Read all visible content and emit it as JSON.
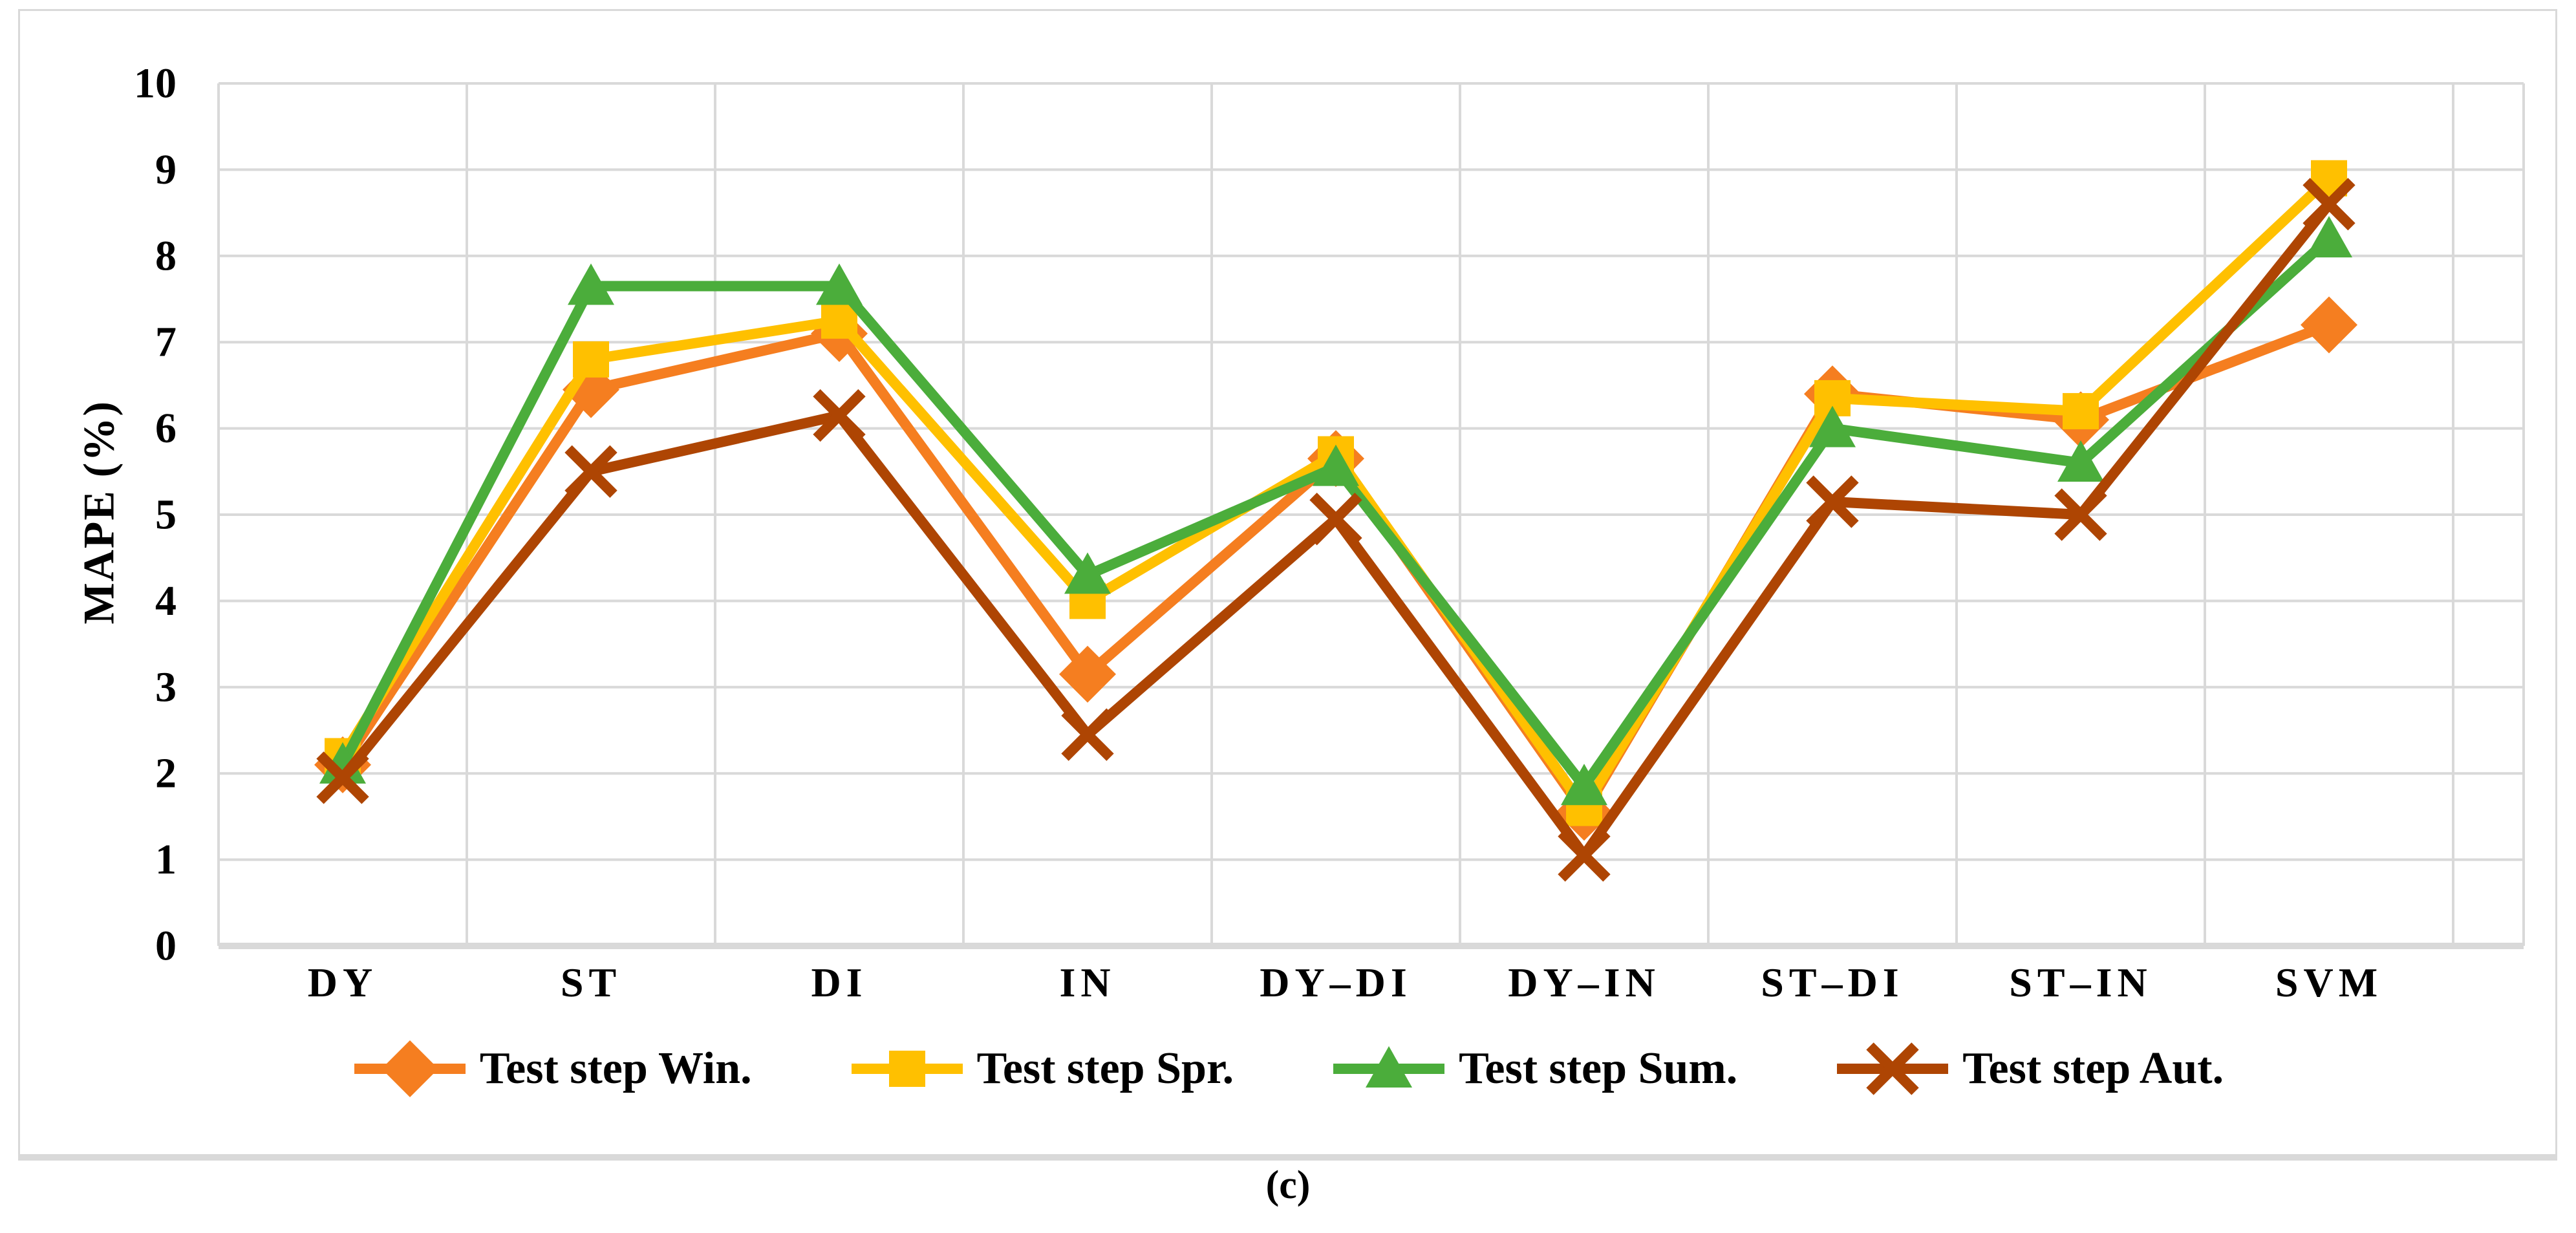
{
  "figure": {
    "caption": "(c)"
  },
  "colors": {
    "grid": "#d9d9d9",
    "axis": "#d9d9d9",
    "text": "#000000",
    "background": "#ffffff"
  },
  "chart_data": {
    "type": "line",
    "title": "",
    "xlabel": "",
    "ylabel": "MAPE (%)",
    "ylim": [
      0,
      10
    ],
    "ytick_step": 1,
    "yticks": [
      0,
      1,
      2,
      3,
      4,
      5,
      6,
      7,
      8,
      9,
      10
    ],
    "grid": true,
    "legend_position": "bottom",
    "categories": [
      "DY",
      "ST",
      "DI",
      "IN",
      "DY–DI",
      "DY–IN",
      "ST–DI",
      "ST–IN",
      "SVM"
    ],
    "series": [
      {
        "name": "Test step Win.",
        "marker": "diamond",
        "color": "#F57E20",
        "values": [
          2.1,
          6.45,
          7.1,
          3.15,
          5.65,
          1.55,
          6.4,
          6.1,
          7.2
        ]
      },
      {
        "name": "Test step Spr.",
        "marker": "square",
        "color": "#FFC000",
        "values": [
          2.2,
          6.8,
          7.25,
          4.0,
          5.7,
          1.6,
          6.35,
          6.2,
          8.9
        ]
      },
      {
        "name": "Test step Sum.",
        "marker": "triangle",
        "color": "#4BAD3B",
        "values": [
          2.1,
          7.65,
          7.65,
          4.3,
          5.55,
          1.85,
          6.0,
          5.6,
          8.2
        ]
      },
      {
        "name": "Test step Aut.",
        "marker": "x",
        "color": "#AE4503",
        "values": [
          1.95,
          5.5,
          6.15,
          2.45,
          4.95,
          1.05,
          5.15,
          5.0,
          8.6
        ]
      }
    ]
  }
}
